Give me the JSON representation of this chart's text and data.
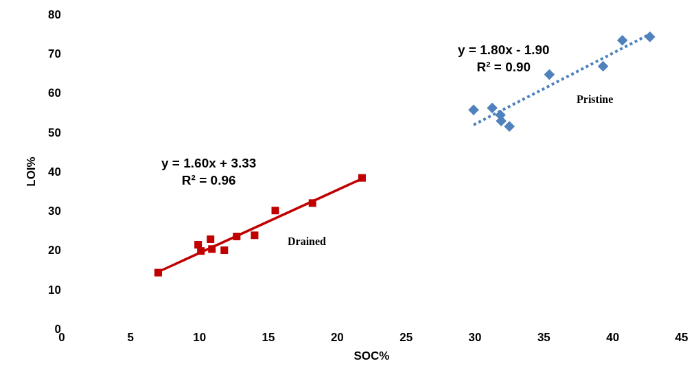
{
  "chart_data": {
    "type": "scatter",
    "xlabel": "SOC%",
    "ylabel": "LOI%",
    "xlim": [
      0,
      45
    ],
    "xticks": [
      0,
      5,
      10,
      15,
      20,
      25,
      30,
      35,
      40,
      45
    ],
    "ylim": [
      0,
      80
    ],
    "yticks": [
      0,
      10,
      20,
      30,
      40,
      50,
      60,
      70,
      80
    ],
    "grid": false,
    "legend": false,
    "series": [
      {
        "name": "Drained",
        "color": "#c00000",
        "marker": "square",
        "x": [
          7.0,
          9.9,
          10.1,
          10.8,
          10.9,
          11.8,
          12.7,
          14.0,
          15.5,
          18.2,
          21.8
        ],
        "values": [
          14.3,
          21.4,
          19.8,
          22.8,
          20.3,
          20.0,
          23.5,
          23.8,
          30.1,
          32.0,
          38.4
        ]
      },
      {
        "type": "line",
        "color": "#c00000",
        "line_style": "solid",
        "marker": "none",
        "x": [
          7.0,
          21.8
        ],
        "values": [
          14.5,
          38.2
        ]
      },
      {
        "name": "Pristine",
        "color": "#4f81bd",
        "marker": "diamond",
        "x": [
          29.9,
          31.25,
          31.85,
          31.9,
          32.5,
          35.4,
          39.3,
          40.7,
          42.7
        ],
        "values": [
          55.7,
          56.2,
          54.4,
          52.9,
          51.5,
          64.7,
          66.8,
          73.4,
          74.3
        ]
      },
      {
        "type": "line",
        "color": "#4f81bd",
        "line_style": "dotted",
        "marker": "none",
        "x": [
          29.9,
          42.7
        ],
        "values": [
          51.9,
          75.0
        ]
      }
    ],
    "annotations": [
      "y = 1.60x + 3.33\nR² = 0.96",
      "y = 1.80x - 1.90\nR² = 0.90"
    ]
  }
}
